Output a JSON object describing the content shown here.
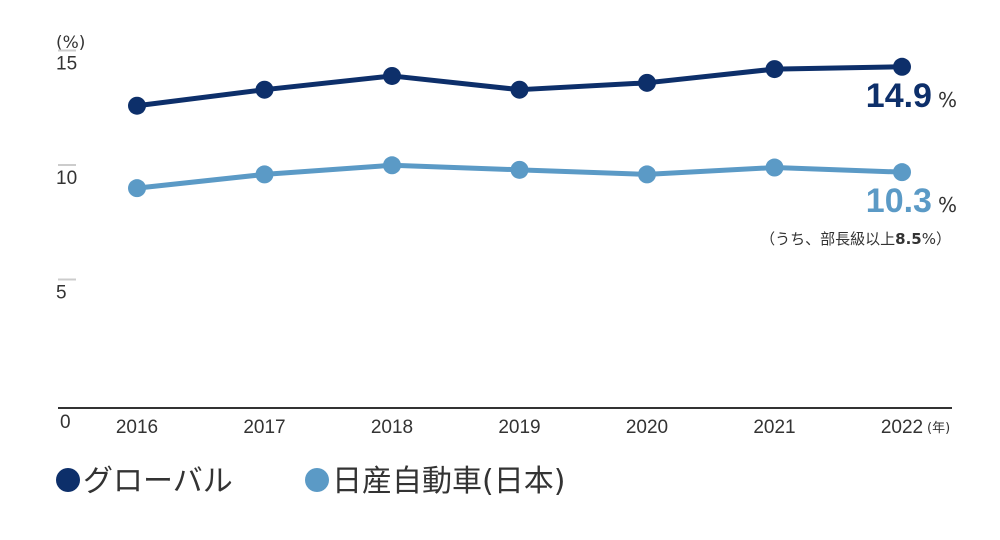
{
  "chart_data": {
    "type": "line",
    "y_unit": "(%)",
    "x_unit": "(年)",
    "categories": [
      "2016",
      "2017",
      "2018",
      "2019",
      "2020",
      "2021",
      "2022"
    ],
    "y_ticks": [
      "0",
      "5",
      "10",
      "15"
    ],
    "ylim": [
      0,
      15.5
    ],
    "grid": false,
    "legend_position": "bottom-left",
    "series": [
      {
        "name": "グローバル",
        "color": "#0d2f6a",
        "values": [
          13.2,
          13.9,
          14.5,
          13.9,
          14.2,
          14.8,
          14.9
        ],
        "end_label": "14.9",
        "end_unit": "%"
      },
      {
        "name": "日産自動車(日本)",
        "color": "#5b9ac6",
        "values": [
          9.6,
          10.2,
          10.6,
          10.4,
          10.2,
          10.5,
          10.3
        ],
        "end_label": "10.3",
        "end_unit": "%"
      }
    ],
    "annotation": {
      "text_prefix": "（うち、部長級以上",
      "text_bold": "8.5",
      "text_suffix": "%）"
    }
  }
}
